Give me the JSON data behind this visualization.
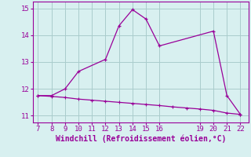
{
  "xlabel": "Windchill (Refroidissement éolien,°C)",
  "x_data1": [
    7,
    8,
    9,
    10,
    12,
    13,
    14,
    15,
    16,
    20,
    21,
    22
  ],
  "y_data1": [
    11.75,
    11.75,
    12.0,
    12.65,
    13.1,
    14.35,
    14.95,
    14.6,
    13.6,
    14.15,
    11.75,
    11.05
  ],
  "x_data2": [
    7,
    8,
    9,
    10,
    11,
    12,
    13,
    14,
    15,
    16,
    17,
    18,
    19,
    20,
    21,
    22
  ],
  "y_data2": [
    11.75,
    11.72,
    11.68,
    11.62,
    11.58,
    11.54,
    11.5,
    11.46,
    11.42,
    11.38,
    11.33,
    11.29,
    11.25,
    11.2,
    11.1,
    11.05
  ],
  "line_color": "#990099",
  "bg_color": "#d8f0f0",
  "grid_color": "#aacccc",
  "ylim": [
    10.75,
    15.25
  ],
  "xlim": [
    6.6,
    22.6
  ],
  "yticks": [
    11,
    12,
    13,
    14,
    15
  ],
  "xticks": [
    7,
    8,
    9,
    10,
    11,
    12,
    13,
    14,
    15,
    16,
    19,
    20,
    21,
    22
  ],
  "tick_fontsize": 6.5,
  "xlabel_fontsize": 7.0
}
